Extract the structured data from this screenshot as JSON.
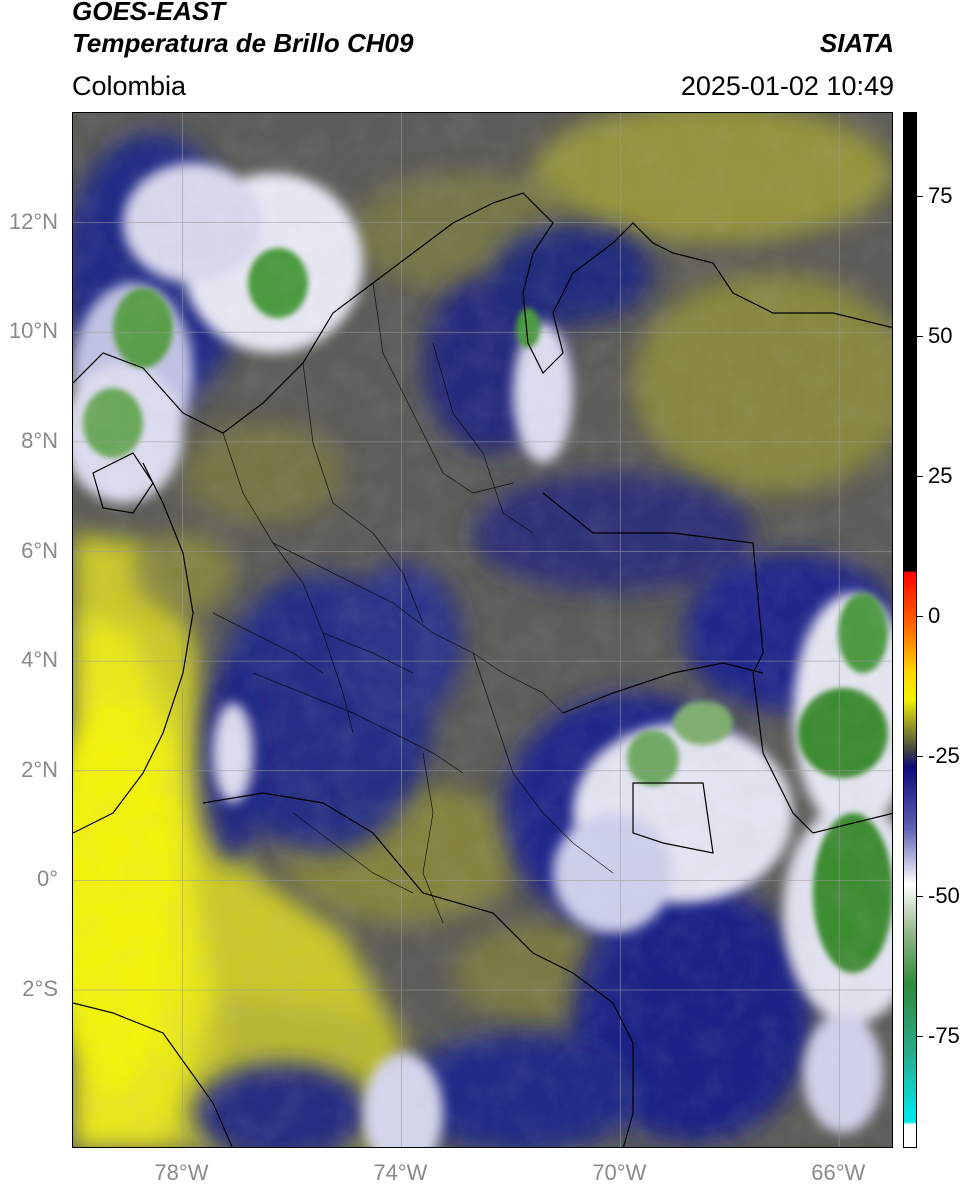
{
  "header": {
    "title_line1": "GOES-EAST",
    "title_line2": "Temperatura de Brillo CH09",
    "organization": "SIATA",
    "region": "Colombia",
    "timestamp": "2025-01-02 10:49"
  },
  "map": {
    "lon_range": [
      -80,
      -65
    ],
    "lat_range": [
      -4.9,
      14
    ],
    "lat_ticks": [
      {
        "value": 12,
        "label": "12°N"
      },
      {
        "value": 10,
        "label": "10°N"
      },
      {
        "value": 8,
        "label": "8°N"
      },
      {
        "value": 6,
        "label": "6°N"
      },
      {
        "value": 4,
        "label": "4°N"
      },
      {
        "value": 2,
        "label": "2°N"
      },
      {
        "value": 0,
        "label": "0°"
      },
      {
        "value": -2,
        "label": "2°S"
      }
    ],
    "lon_ticks": [
      {
        "value": -78,
        "label": "78°W"
      },
      {
        "value": -74,
        "label": "74°W"
      },
      {
        "value": -70,
        "label": "70°W"
      },
      {
        "value": -66,
        "label": "66°W"
      }
    ],
    "cloud_top_colors": {
      "warm_yellow": "#e7e61c",
      "olive": "#9a9a3c",
      "grey": "#5e5e5e",
      "navy": "#1c2385",
      "white": "#ffffff",
      "green": "#3e8c32"
    }
  },
  "colorbar": {
    "range": [
      -95,
      90
    ],
    "ticks": [
      {
        "value": 75,
        "label": "75"
      },
      {
        "value": 50,
        "label": "50"
      },
      {
        "value": 25,
        "label": "25"
      },
      {
        "value": 0,
        "label": "0"
      },
      {
        "value": -25,
        "label": "-25"
      },
      {
        "value": -50,
        "label": "-50"
      },
      {
        "value": -75,
        "label": "-75"
      }
    ],
    "stops": [
      {
        "value": 90,
        "color": "#000000"
      },
      {
        "value": 8,
        "color": "#000000"
      },
      {
        "value": 7.9,
        "color": "#ff0000"
      },
      {
        "value": -2,
        "color": "#ff6a00"
      },
      {
        "value": -10,
        "color": "#ffd700"
      },
      {
        "value": -15,
        "color": "#f1f100"
      },
      {
        "value": -20,
        "color": "#8e8e2a"
      },
      {
        "value": -24,
        "color": "#444444"
      },
      {
        "value": -27,
        "color": "#0a0a7a"
      },
      {
        "value": -38,
        "color": "#5d61b5"
      },
      {
        "value": -48,
        "color": "#ffffff"
      },
      {
        "value": -57,
        "color": "#8fb585"
      },
      {
        "value": -66,
        "color": "#2e8b3c"
      },
      {
        "value": -78,
        "color": "#2aaa8a"
      },
      {
        "value": -89,
        "color": "#00e6e6"
      },
      {
        "value": -90.5,
        "color": "#00e6e6"
      },
      {
        "value": -91,
        "color": "#ffffff"
      },
      {
        "value": -95,
        "color": "#ffffff"
      }
    ]
  }
}
